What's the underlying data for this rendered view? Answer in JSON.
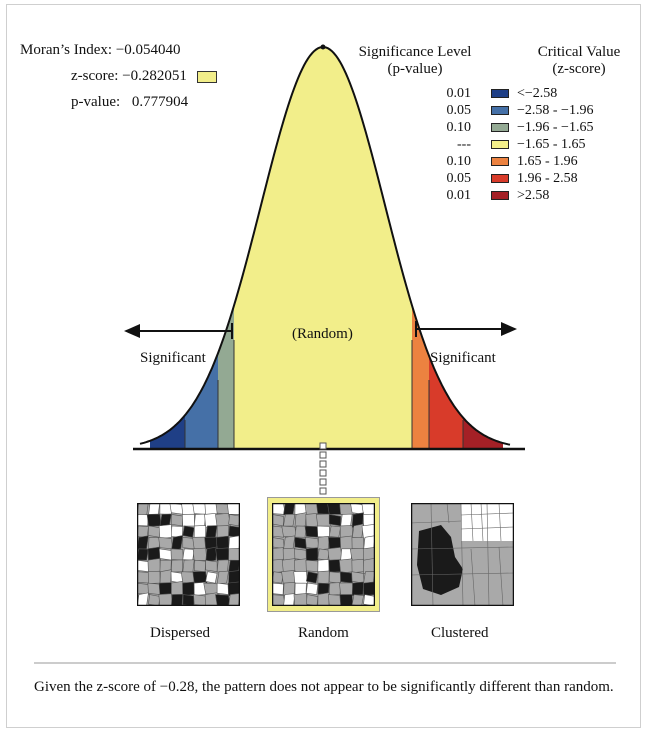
{
  "stats": {
    "morans_label": "Moran’s Index:",
    "morans_value": "−0.054040",
    "z_label": "z-score:",
    "z_value": "−0.282051",
    "p_label": "p-value:",
    "p_value": "0.777904"
  },
  "legend": {
    "sig_header_1": "Significance Level",
    "sig_header_2": "(p-value)",
    "crit_header_1": "Critical Value",
    "crit_header_2": "(z-score)",
    "rows": [
      {
        "p": "0.01",
        "z": "<−2.58",
        "color": "#1f3f86"
      },
      {
        "p": "0.05",
        "z": "−2.58 - −1.96",
        "color": "#4570a7"
      },
      {
        "p": "0.10",
        "z": "−1.96 - −1.65",
        "color": "#93a993"
      },
      {
        "p": "---",
        "z": "−1.65 - 1.65",
        "color": "#f2ee8a"
      },
      {
        "p": "0.10",
        "z": "1.65 - 1.96",
        "color": "#ec8240"
      },
      {
        "p": "0.05",
        "z": "1.96 - 2.58",
        "color": "#d83b2a"
      },
      {
        "p": "0.01",
        "z": ">2.58",
        "color": "#a42026"
      }
    ]
  },
  "curve": {
    "center_label": "(Random)",
    "left_label": "Significant",
    "right_label": "Significant"
  },
  "maps": {
    "dispersed": "Dispersed",
    "random": "Random",
    "clustered": "Clustered"
  },
  "caption": "Given the z-score of −0.28, the pattern does not appear to be significantly different than random."
}
